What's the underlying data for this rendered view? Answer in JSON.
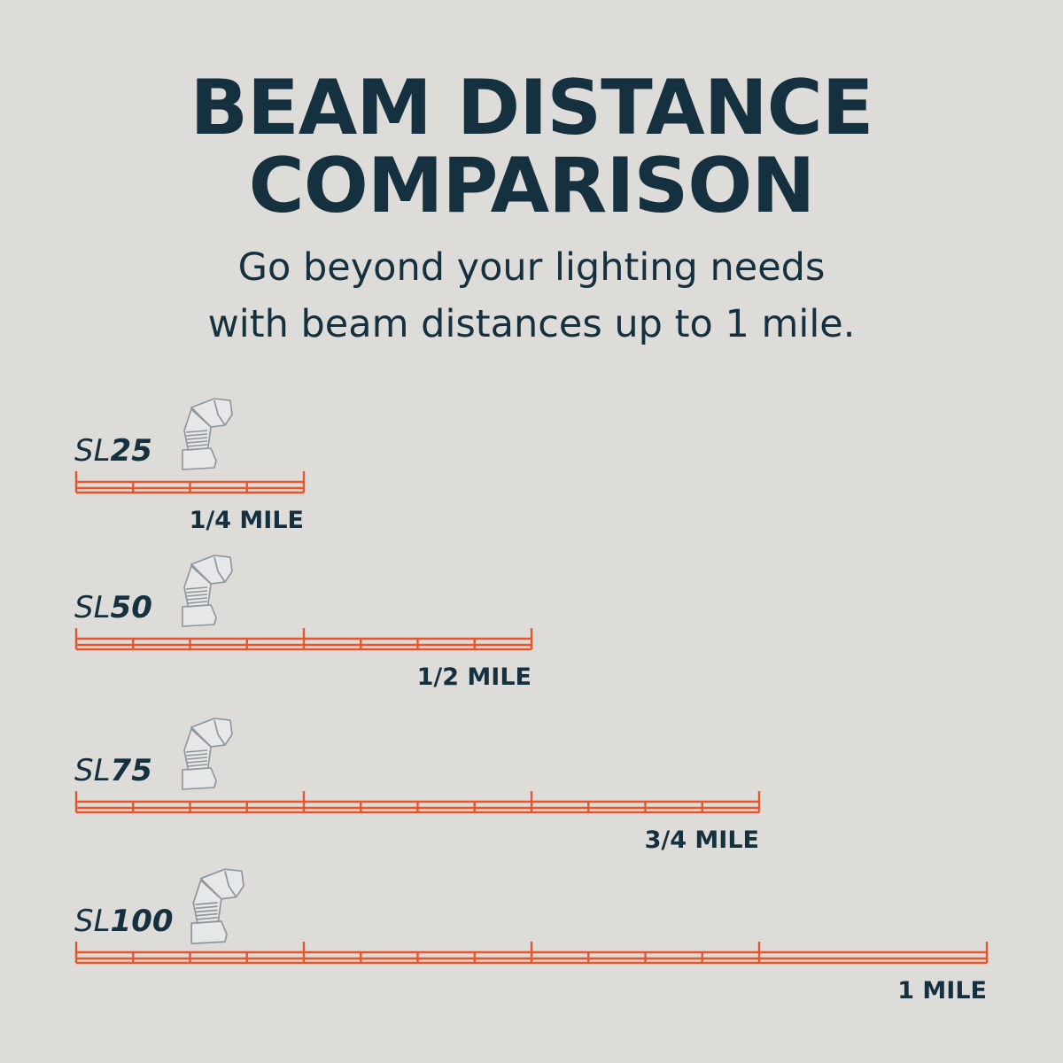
{
  "header": {
    "title_line1": "BEAM DISTANCE",
    "title_line2": "COMPARISON",
    "subtitle_line1": "Go beyond your lighting needs",
    "subtitle_line2": "with beam distances up to 1 mile."
  },
  "colors": {
    "background": "#dedcd9",
    "text": "#15303f",
    "ruler": "#e8552a",
    "icon_stroke": "#8e9599",
    "icon_fill": "#e6e7e8"
  },
  "chart_data": {
    "type": "bar",
    "title": "BEAM DISTANCE COMPARISON",
    "unit": "MILE",
    "xlim": [
      0,
      1
    ],
    "categories": [
      "SL25",
      "SL50",
      "SL75",
      "SL100"
    ],
    "values": [
      0.25,
      0.5,
      0.75,
      1
    ],
    "items": [
      {
        "prefix": "SL",
        "number": "25",
        "value": 0.25,
        "label": "1/4 MILE",
        "icon": "flashlight-icon"
      },
      {
        "prefix": "SL",
        "number": "50",
        "value": 0.5,
        "label": "1/2 MILE",
        "icon": "flashlight-icon"
      },
      {
        "prefix": "SL",
        "number": "75",
        "value": 0.75,
        "label": "3/4 MILE",
        "icon": "flashlight-icon"
      },
      {
        "prefix": "SL",
        "number": "100",
        "value": 1,
        "label": "1 MILE",
        "icon": "flashlight-icon"
      }
    ]
  }
}
